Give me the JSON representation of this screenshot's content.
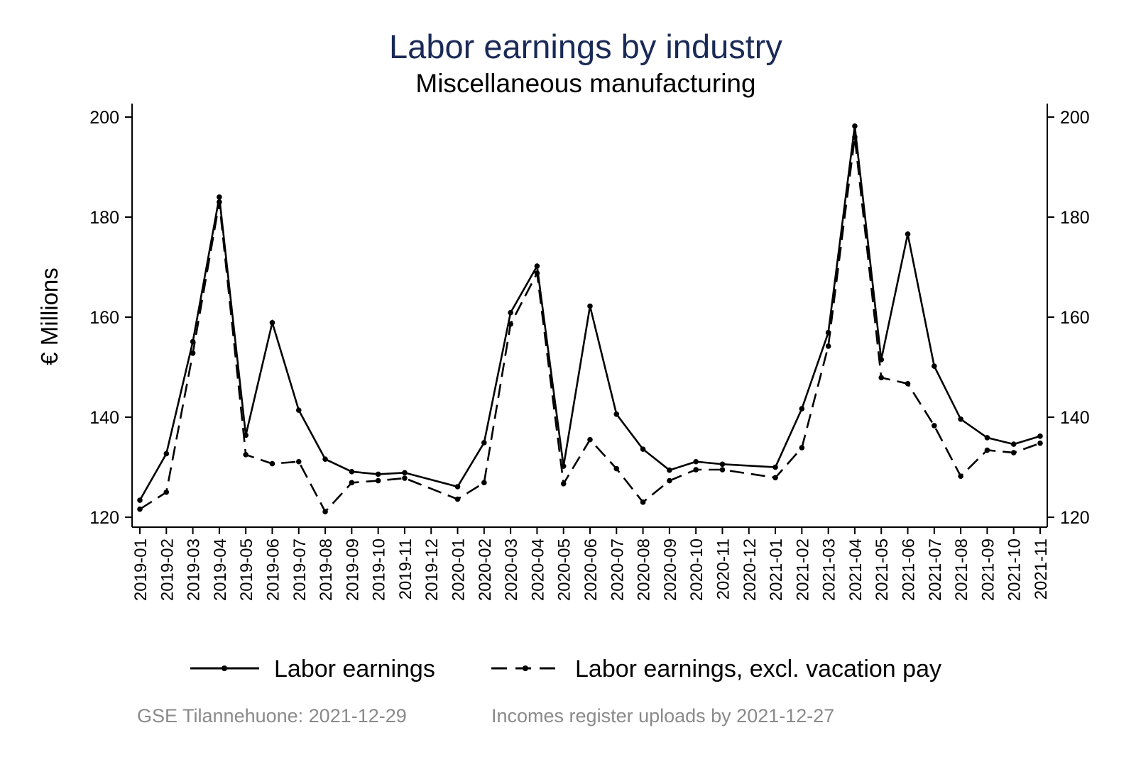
{
  "chart_data": {
    "type": "line",
    "title": "Labor earnings by industry",
    "subtitle": "Miscellaneous manufacturing",
    "ylabel": "€ Millions",
    "xlabel": "",
    "ylim": [
      120,
      200
    ],
    "yticks": [
      120,
      140,
      160,
      180,
      200
    ],
    "categories": [
      "2019-01",
      "2019-02",
      "2019-03",
      "2019-04",
      "2019-05",
      "2019-06",
      "2019-07",
      "2019-08",
      "2019-09",
      "2019-10",
      "2019-11",
      "2019-12",
      "2020-01",
      "2020-02",
      "2020-03",
      "2020-04",
      "2020-05",
      "2020-06",
      "2020-07",
      "2020-08",
      "2020-09",
      "2020-10",
      "2020-11",
      "2020-12",
      "2021-01",
      "2021-02",
      "2021-03",
      "2021-04",
      "2021-05",
      "2021-06",
      "2021-07",
      "2021-08",
      "2021-09",
      "2021-10",
      "2021-11"
    ],
    "series": [
      {
        "name": "Labor earnings",
        "style": "solid",
        "values": [
          123.4,
          132.7,
          155.1,
          184.0,
          136.4,
          158.9,
          141.4,
          131.6,
          129.1,
          128.6,
          128.9,
          null,
          126.1,
          134.9,
          160.9,
          170.2,
          130.2,
          162.2,
          140.6,
          133.6,
          129.4,
          131.1,
          130.6,
          null,
          130.0,
          141.7,
          156.9,
          198.2,
          151.5,
          176.6,
          150.2,
          139.6,
          135.9,
          134.6,
          136.2
        ]
      },
      {
        "name": "Labor earnings, excl. vacation pay",
        "style": "dashed",
        "values": [
          121.6,
          125.0,
          152.8,
          183.0,
          132.5,
          130.7,
          131.1,
          121.1,
          126.9,
          127.3,
          127.8,
          null,
          123.6,
          126.9,
          158.6,
          168.8,
          126.7,
          135.5,
          129.7,
          123.0,
          127.3,
          129.5,
          129.5,
          null,
          127.9,
          133.9,
          154.2,
          196.0,
          147.9,
          146.7,
          138.3,
          128.2,
          133.4,
          132.9,
          134.8
        ]
      }
    ],
    "legend_position": "bottom",
    "grid": false,
    "mirrored_right_axis": true
  },
  "footnotes": {
    "source": "GSE Tilannehuone: 2021-12-29",
    "uploads": "Incomes register uploads by 2021-12-27"
  },
  "colors": {
    "title": "#1a2a57",
    "series": "#000000",
    "footnote": "#8a8a8a"
  }
}
